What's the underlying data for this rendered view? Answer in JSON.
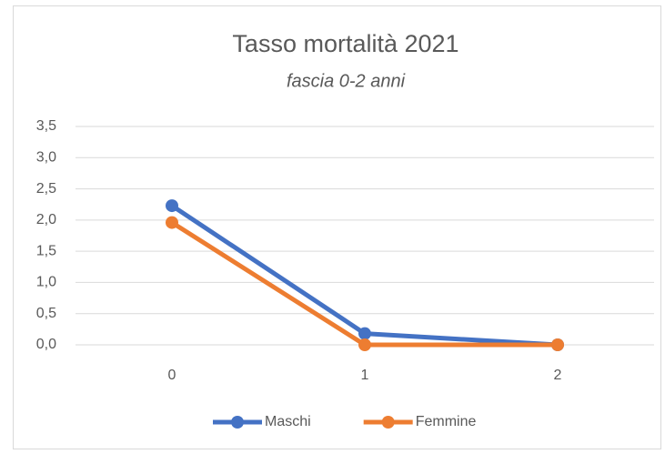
{
  "chart_data": {
    "type": "line",
    "title": "Tasso mortalità 2021",
    "subtitle": "fascia 0-2 anni",
    "categories": [
      "0",
      "1",
      "2"
    ],
    "series": [
      {
        "name": "Maschi",
        "color": "#4472c4",
        "values": [
          2.23,
          0.18,
          0.0
        ]
      },
      {
        "name": "Femmine",
        "color": "#ed7d31",
        "values": [
          1.96,
          0.0,
          0.0
        ]
      }
    ],
    "ylim": [
      0,
      3.5
    ],
    "yticks": [
      {
        "value": 0,
        "label": "0,0"
      },
      {
        "value": 0.5,
        "label": "0,5"
      },
      {
        "value": 1,
        "label": "1,0"
      },
      {
        "value": 1.5,
        "label": "1,5"
      },
      {
        "value": 2,
        "label": "2,0"
      },
      {
        "value": 2.5,
        "label": "2,5"
      },
      {
        "value": 3,
        "label": "3,0"
      },
      {
        "value": 3.5,
        "label": "3,5"
      }
    ],
    "grid": true,
    "legend": "bottom"
  }
}
